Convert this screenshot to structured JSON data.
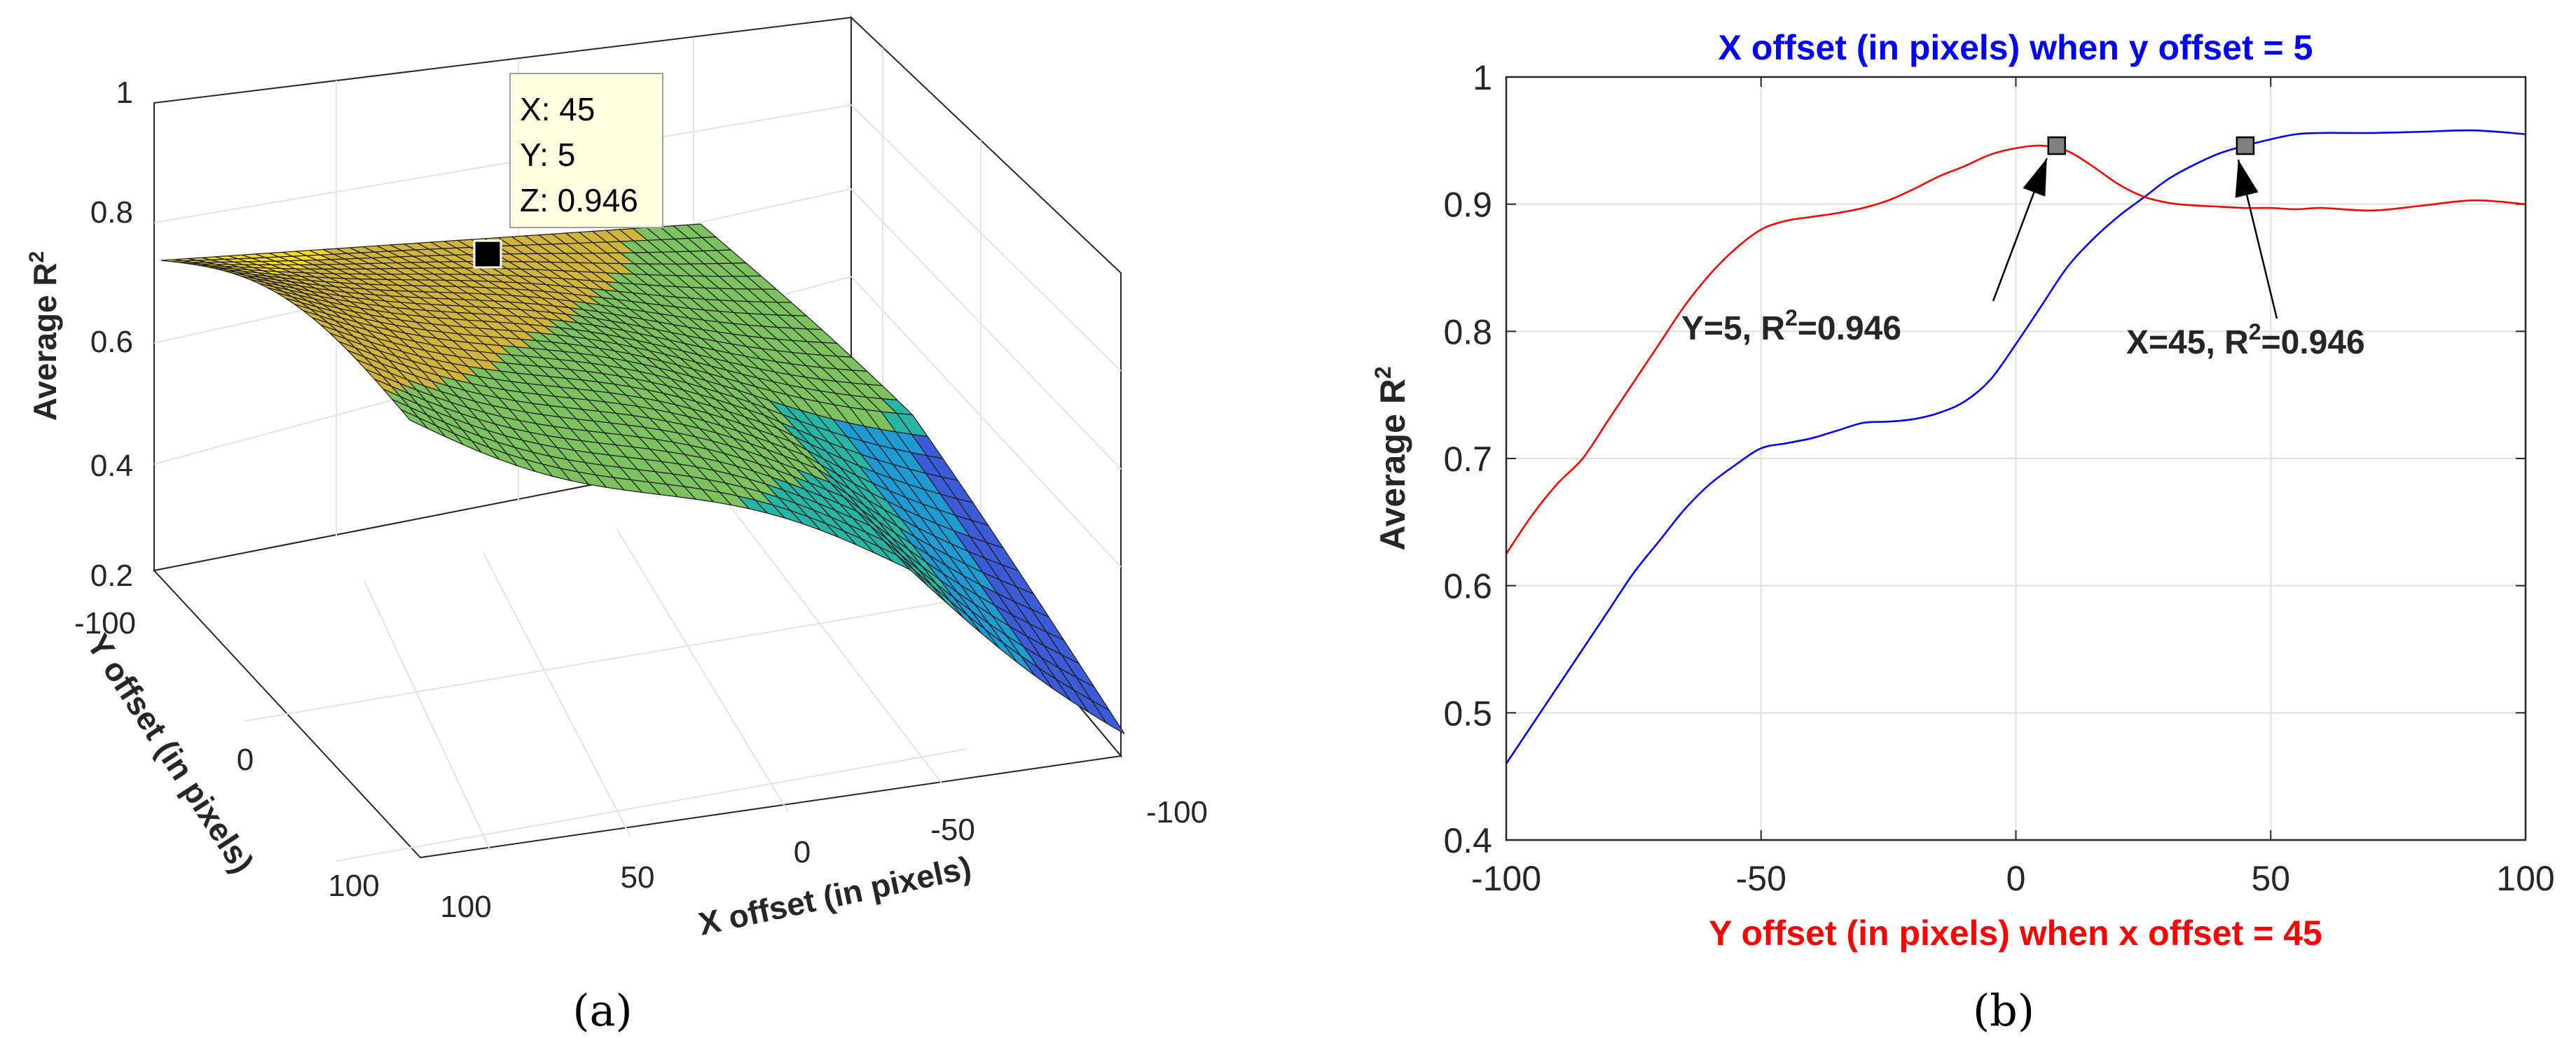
{
  "chart_data": [
    {
      "panel": "(a)",
      "type": "surface",
      "zlabel": "Average R",
      "zlabel_sup": "2",
      "xlabel": "X offset (in pixels)",
      "ylabel": "Y offset (in pixels)",
      "zlim": [
        0.2,
        1
      ],
      "z_ticks": [
        "1",
        "0.8",
        "0.6",
        "0.4",
        "0.2"
      ],
      "x_ticks": [
        "100",
        "50",
        "0",
        "-50",
        "-100"
      ],
      "y_ticks": [
        "-100",
        "0",
        "100"
      ],
      "datatip": {
        "x_line": "X: 45",
        "y_line": "Y: 5",
        "z_line": "Z: 0.946"
      },
      "colormap": [
        "#3b5cd6",
        "#1e9bd3",
        "#27b6a4",
        "#7cc35f",
        "#d1b43a",
        "#f6db20"
      ]
    },
    {
      "panel": "(b)",
      "type": "line",
      "title": "X offset (in pixels) when y offset = 5",
      "xlabel": "Y offset (in pixels) when x offset = 45",
      "ylabel": "Average R",
      "ylabel_sup": "2",
      "xlim": [
        -100,
        100
      ],
      "ylim": [
        0.4,
        1
      ],
      "x_ticks": [
        -100,
        -50,
        0,
        50,
        100
      ],
      "x_tick_labels": [
        "-100",
        "-50",
        "0",
        "50",
        "100"
      ],
      "y_ticks": [
        0.4,
        0.5,
        0.6,
        0.7,
        0.8,
        0.9,
        1
      ],
      "y_tick_labels": [
        "0.4",
        "0.5",
        "0.6",
        "0.7",
        "0.8",
        "0.9",
        "1"
      ],
      "series": [
        {
          "name": "X offset (y offset = 5)",
          "color": "#0000ff",
          "x": [
            -100,
            -95,
            -90,
            -85,
            -80,
            -75,
            -70,
            -65,
            -60,
            -55,
            -50,
            -45,
            -40,
            -35,
            -30,
            -25,
            -20,
            -15,
            -10,
            -5,
            0,
            5,
            10,
            15,
            20,
            25,
            30,
            35,
            40,
            45,
            50,
            55,
            60,
            70,
            80,
            90,
            100
          ],
          "y": [
            0.46,
            0.49,
            0.52,
            0.55,
            0.58,
            0.61,
            0.635,
            0.66,
            0.68,
            0.695,
            0.708,
            0.712,
            0.716,
            0.722,
            0.728,
            0.729,
            0.731,
            0.736,
            0.745,
            0.762,
            0.79,
            0.82,
            0.85,
            0.872,
            0.89,
            0.905,
            0.92,
            0.931,
            0.94,
            0.946,
            0.951,
            0.955,
            0.956,
            0.956,
            0.957,
            0.958,
            0.955
          ]
        },
        {
          "name": "Y offset (x offset = 45)",
          "color": "#ff0000",
          "x": [
            -100,
            -95,
            -90,
            -85,
            -80,
            -75,
            -70,
            -65,
            -60,
            -55,
            -50,
            -45,
            -40,
            -35,
            -30,
            -25,
            -20,
            -15,
            -10,
            -5,
            0,
            5,
            10,
            15,
            20,
            25,
            30,
            35,
            40,
            45,
            50,
            55,
            60,
            70,
            80,
            90,
            100
          ],
          "y": [
            0.625,
            0.655,
            0.68,
            0.7,
            0.73,
            0.76,
            0.79,
            0.82,
            0.845,
            0.865,
            0.88,
            0.887,
            0.89,
            0.893,
            0.897,
            0.903,
            0.912,
            0.922,
            0.93,
            0.939,
            0.944,
            0.946,
            0.942,
            0.93,
            0.916,
            0.906,
            0.901,
            0.899,
            0.898,
            0.897,
            0.897,
            0.896,
            0.897,
            0.895,
            0.899,
            0.903,
            0.9
          ]
        }
      ],
      "markers": [
        {
          "x": 8,
          "y": 0.946
        },
        {
          "x": 45,
          "y": 0.946
        }
      ],
      "annotations": [
        {
          "prefix": "Y=5, R",
          "sup": "2",
          "suffix": "=0.946",
          "target_x": 8,
          "target_y": 0.946
        },
        {
          "prefix": "X=45, R",
          "sup": "2",
          "suffix": "=0.946",
          "target_x": 45,
          "target_y": 0.946
        }
      ]
    }
  ],
  "captions": {
    "a": "(a)",
    "b": "(b)"
  }
}
